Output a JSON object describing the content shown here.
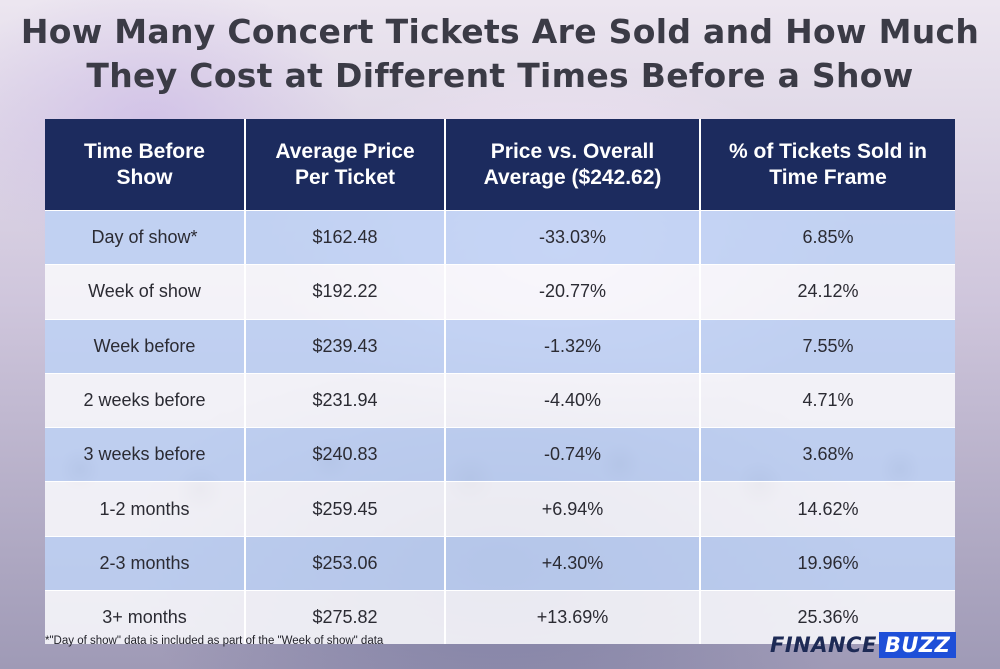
{
  "title": "How Many Concert Tickets Are Sold and How Much They Cost at Different Times Before a Show",
  "chart_data": {
    "type": "table",
    "columns": [
      "Time Before Show",
      "Average Price Per Ticket",
      "Price vs. Overall Average ($242.62)",
      "% of Tickets Sold in Time Frame"
    ],
    "rows": [
      [
        "Day of show*",
        "$162.48",
        "-33.03%",
        "6.85%"
      ],
      [
        "Week of show",
        "$192.22",
        "-20.77%",
        "24.12%"
      ],
      [
        "Week before",
        "$239.43",
        "-1.32%",
        "7.55%"
      ],
      [
        "2 weeks before",
        "$231.94",
        "-4.40%",
        "4.71%"
      ],
      [
        "3 weeks before",
        "$240.83",
        "-0.74%",
        "3.68%"
      ],
      [
        "1-2 months",
        "$259.45",
        "+6.94%",
        "14.62%"
      ],
      [
        "2-3 months",
        "$253.06",
        "+4.30%",
        "19.96%"
      ],
      [
        "3+ months",
        "$275.82",
        "+13.69%",
        "25.36%"
      ]
    ]
  },
  "footnote": "*\"Day of show\" data is included as part of the \"Week of show\" data",
  "logo": {
    "word1": "FINANCE",
    "word2": "BUZZ"
  },
  "colors": {
    "header_bg": "#1c2b5e",
    "row_blue": "#bed2f5",
    "row_white": "#f8f8fc",
    "logo_accent": "#1e4fd8"
  }
}
